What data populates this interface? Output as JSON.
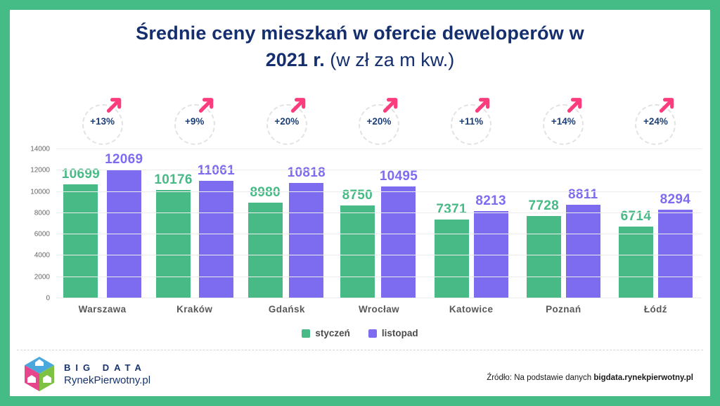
{
  "title": {
    "line1": "Średnie ceny mieszkań w ofercie deweloperów w",
    "line2_bold": "2021 r.",
    "line2_light": " (w zł za m kw.)"
  },
  "chart_data": {
    "type": "bar",
    "title": "Średnie ceny mieszkań w ofercie deweloperów w 2021 r. (w zł za m kw.)",
    "categories": [
      "Warszawa",
      "Kraków",
      "Gdańsk",
      "Wrocław",
      "Katowice",
      "Poznań",
      "Łódź"
    ],
    "series": [
      {
        "name": "styczeń",
        "color": "#47ba85",
        "values": [
          10699,
          10176,
          8980,
          8750,
          7371,
          7728,
          6714
        ]
      },
      {
        "name": "listopad",
        "color": "#7e6cf0",
        "values": [
          12069,
          11061,
          10818,
          10495,
          8213,
          8811,
          8294
        ]
      }
    ],
    "pct_changes": [
      "+13%",
      "+9%",
      "+20%",
      "+20%",
      "+11%",
      "+14%",
      "+24%"
    ],
    "ylim": [
      0,
      14000
    ],
    "yticks": [
      0,
      2000,
      4000,
      6000,
      8000,
      10000,
      12000,
      14000
    ],
    "grid": true,
    "legend_position": "bottom",
    "xlabel": "",
    "ylabel": ""
  },
  "footer": {
    "logo_line1": "BIG DATA",
    "logo_line2": "RynekPierwotny.pl",
    "source_prefix": "Źródło: Na podstawie danych ",
    "source_bold": "bigdata.rynekpierwotny.pl"
  },
  "colors": {
    "frame_green": "#45bb86",
    "bar_green": "#47ba85",
    "bar_purple": "#7e6cf0",
    "title_navy": "#142e6e",
    "arrow_pink": "#fb3d7d",
    "gridline": "#ececec",
    "city_label": "#595959",
    "cube_blue": "#4aa8dc",
    "cube_pink": "#e8468c",
    "cube_green": "#7dc242"
  }
}
